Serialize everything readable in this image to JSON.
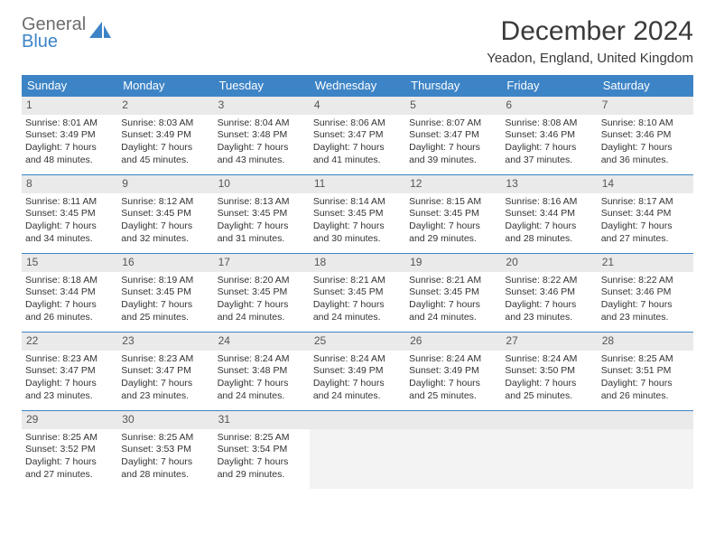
{
  "logo": {
    "line1": "General",
    "line2": "Blue"
  },
  "title": "December 2024",
  "location": "Yeadon, England, United Kingdom",
  "colors": {
    "header_bg": "#3d84c6",
    "header_text": "#ffffff",
    "daynum_bg": "#eaeaea",
    "daynum_text": "#555555",
    "border": "#3d84c6",
    "body_text": "#333333",
    "logo_gray": "#6d6d6d",
    "logo_blue": "#3d84c6",
    "empty_bg": "#f3f3f3",
    "page_bg": "#ffffff"
  },
  "weekdays": [
    "Sunday",
    "Monday",
    "Tuesday",
    "Wednesday",
    "Thursday",
    "Friday",
    "Saturday"
  ],
  "weeks": [
    [
      {
        "n": "1",
        "sr": "Sunrise: 8:01 AM",
        "ss": "Sunset: 3:49 PM",
        "dl1": "Daylight: 7 hours",
        "dl2": "and 48 minutes."
      },
      {
        "n": "2",
        "sr": "Sunrise: 8:03 AM",
        "ss": "Sunset: 3:49 PM",
        "dl1": "Daylight: 7 hours",
        "dl2": "and 45 minutes."
      },
      {
        "n": "3",
        "sr": "Sunrise: 8:04 AM",
        "ss": "Sunset: 3:48 PM",
        "dl1": "Daylight: 7 hours",
        "dl2": "and 43 minutes."
      },
      {
        "n": "4",
        "sr": "Sunrise: 8:06 AM",
        "ss": "Sunset: 3:47 PM",
        "dl1": "Daylight: 7 hours",
        "dl2": "and 41 minutes."
      },
      {
        "n": "5",
        "sr": "Sunrise: 8:07 AM",
        "ss": "Sunset: 3:47 PM",
        "dl1": "Daylight: 7 hours",
        "dl2": "and 39 minutes."
      },
      {
        "n": "6",
        "sr": "Sunrise: 8:08 AM",
        "ss": "Sunset: 3:46 PM",
        "dl1": "Daylight: 7 hours",
        "dl2": "and 37 minutes."
      },
      {
        "n": "7",
        "sr": "Sunrise: 8:10 AM",
        "ss": "Sunset: 3:46 PM",
        "dl1": "Daylight: 7 hours",
        "dl2": "and 36 minutes."
      }
    ],
    [
      {
        "n": "8",
        "sr": "Sunrise: 8:11 AM",
        "ss": "Sunset: 3:45 PM",
        "dl1": "Daylight: 7 hours",
        "dl2": "and 34 minutes."
      },
      {
        "n": "9",
        "sr": "Sunrise: 8:12 AM",
        "ss": "Sunset: 3:45 PM",
        "dl1": "Daylight: 7 hours",
        "dl2": "and 32 minutes."
      },
      {
        "n": "10",
        "sr": "Sunrise: 8:13 AM",
        "ss": "Sunset: 3:45 PM",
        "dl1": "Daylight: 7 hours",
        "dl2": "and 31 minutes."
      },
      {
        "n": "11",
        "sr": "Sunrise: 8:14 AM",
        "ss": "Sunset: 3:45 PM",
        "dl1": "Daylight: 7 hours",
        "dl2": "and 30 minutes."
      },
      {
        "n": "12",
        "sr": "Sunrise: 8:15 AM",
        "ss": "Sunset: 3:45 PM",
        "dl1": "Daylight: 7 hours",
        "dl2": "and 29 minutes."
      },
      {
        "n": "13",
        "sr": "Sunrise: 8:16 AM",
        "ss": "Sunset: 3:44 PM",
        "dl1": "Daylight: 7 hours",
        "dl2": "and 28 minutes."
      },
      {
        "n": "14",
        "sr": "Sunrise: 8:17 AM",
        "ss": "Sunset: 3:44 PM",
        "dl1": "Daylight: 7 hours",
        "dl2": "and 27 minutes."
      }
    ],
    [
      {
        "n": "15",
        "sr": "Sunrise: 8:18 AM",
        "ss": "Sunset: 3:44 PM",
        "dl1": "Daylight: 7 hours",
        "dl2": "and 26 minutes."
      },
      {
        "n": "16",
        "sr": "Sunrise: 8:19 AM",
        "ss": "Sunset: 3:45 PM",
        "dl1": "Daylight: 7 hours",
        "dl2": "and 25 minutes."
      },
      {
        "n": "17",
        "sr": "Sunrise: 8:20 AM",
        "ss": "Sunset: 3:45 PM",
        "dl1": "Daylight: 7 hours",
        "dl2": "and 24 minutes."
      },
      {
        "n": "18",
        "sr": "Sunrise: 8:21 AM",
        "ss": "Sunset: 3:45 PM",
        "dl1": "Daylight: 7 hours",
        "dl2": "and 24 minutes."
      },
      {
        "n": "19",
        "sr": "Sunrise: 8:21 AM",
        "ss": "Sunset: 3:45 PM",
        "dl1": "Daylight: 7 hours",
        "dl2": "and 24 minutes."
      },
      {
        "n": "20",
        "sr": "Sunrise: 8:22 AM",
        "ss": "Sunset: 3:46 PM",
        "dl1": "Daylight: 7 hours",
        "dl2": "and 23 minutes."
      },
      {
        "n": "21",
        "sr": "Sunrise: 8:22 AM",
        "ss": "Sunset: 3:46 PM",
        "dl1": "Daylight: 7 hours",
        "dl2": "and 23 minutes."
      }
    ],
    [
      {
        "n": "22",
        "sr": "Sunrise: 8:23 AM",
        "ss": "Sunset: 3:47 PM",
        "dl1": "Daylight: 7 hours",
        "dl2": "and 23 minutes."
      },
      {
        "n": "23",
        "sr": "Sunrise: 8:23 AM",
        "ss": "Sunset: 3:47 PM",
        "dl1": "Daylight: 7 hours",
        "dl2": "and 23 minutes."
      },
      {
        "n": "24",
        "sr": "Sunrise: 8:24 AM",
        "ss": "Sunset: 3:48 PM",
        "dl1": "Daylight: 7 hours",
        "dl2": "and 24 minutes."
      },
      {
        "n": "25",
        "sr": "Sunrise: 8:24 AM",
        "ss": "Sunset: 3:49 PM",
        "dl1": "Daylight: 7 hours",
        "dl2": "and 24 minutes."
      },
      {
        "n": "26",
        "sr": "Sunrise: 8:24 AM",
        "ss": "Sunset: 3:49 PM",
        "dl1": "Daylight: 7 hours",
        "dl2": "and 25 minutes."
      },
      {
        "n": "27",
        "sr": "Sunrise: 8:24 AM",
        "ss": "Sunset: 3:50 PM",
        "dl1": "Daylight: 7 hours",
        "dl2": "and 25 minutes."
      },
      {
        "n": "28",
        "sr": "Sunrise: 8:25 AM",
        "ss": "Sunset: 3:51 PM",
        "dl1": "Daylight: 7 hours",
        "dl2": "and 26 minutes."
      }
    ],
    [
      {
        "n": "29",
        "sr": "Sunrise: 8:25 AM",
        "ss": "Sunset: 3:52 PM",
        "dl1": "Daylight: 7 hours",
        "dl2": "and 27 minutes."
      },
      {
        "n": "30",
        "sr": "Sunrise: 8:25 AM",
        "ss": "Sunset: 3:53 PM",
        "dl1": "Daylight: 7 hours",
        "dl2": "and 28 minutes."
      },
      {
        "n": "31",
        "sr": "Sunrise: 8:25 AM",
        "ss": "Sunset: 3:54 PM",
        "dl1": "Daylight: 7 hours",
        "dl2": "and 29 minutes."
      },
      null,
      null,
      null,
      null
    ]
  ]
}
